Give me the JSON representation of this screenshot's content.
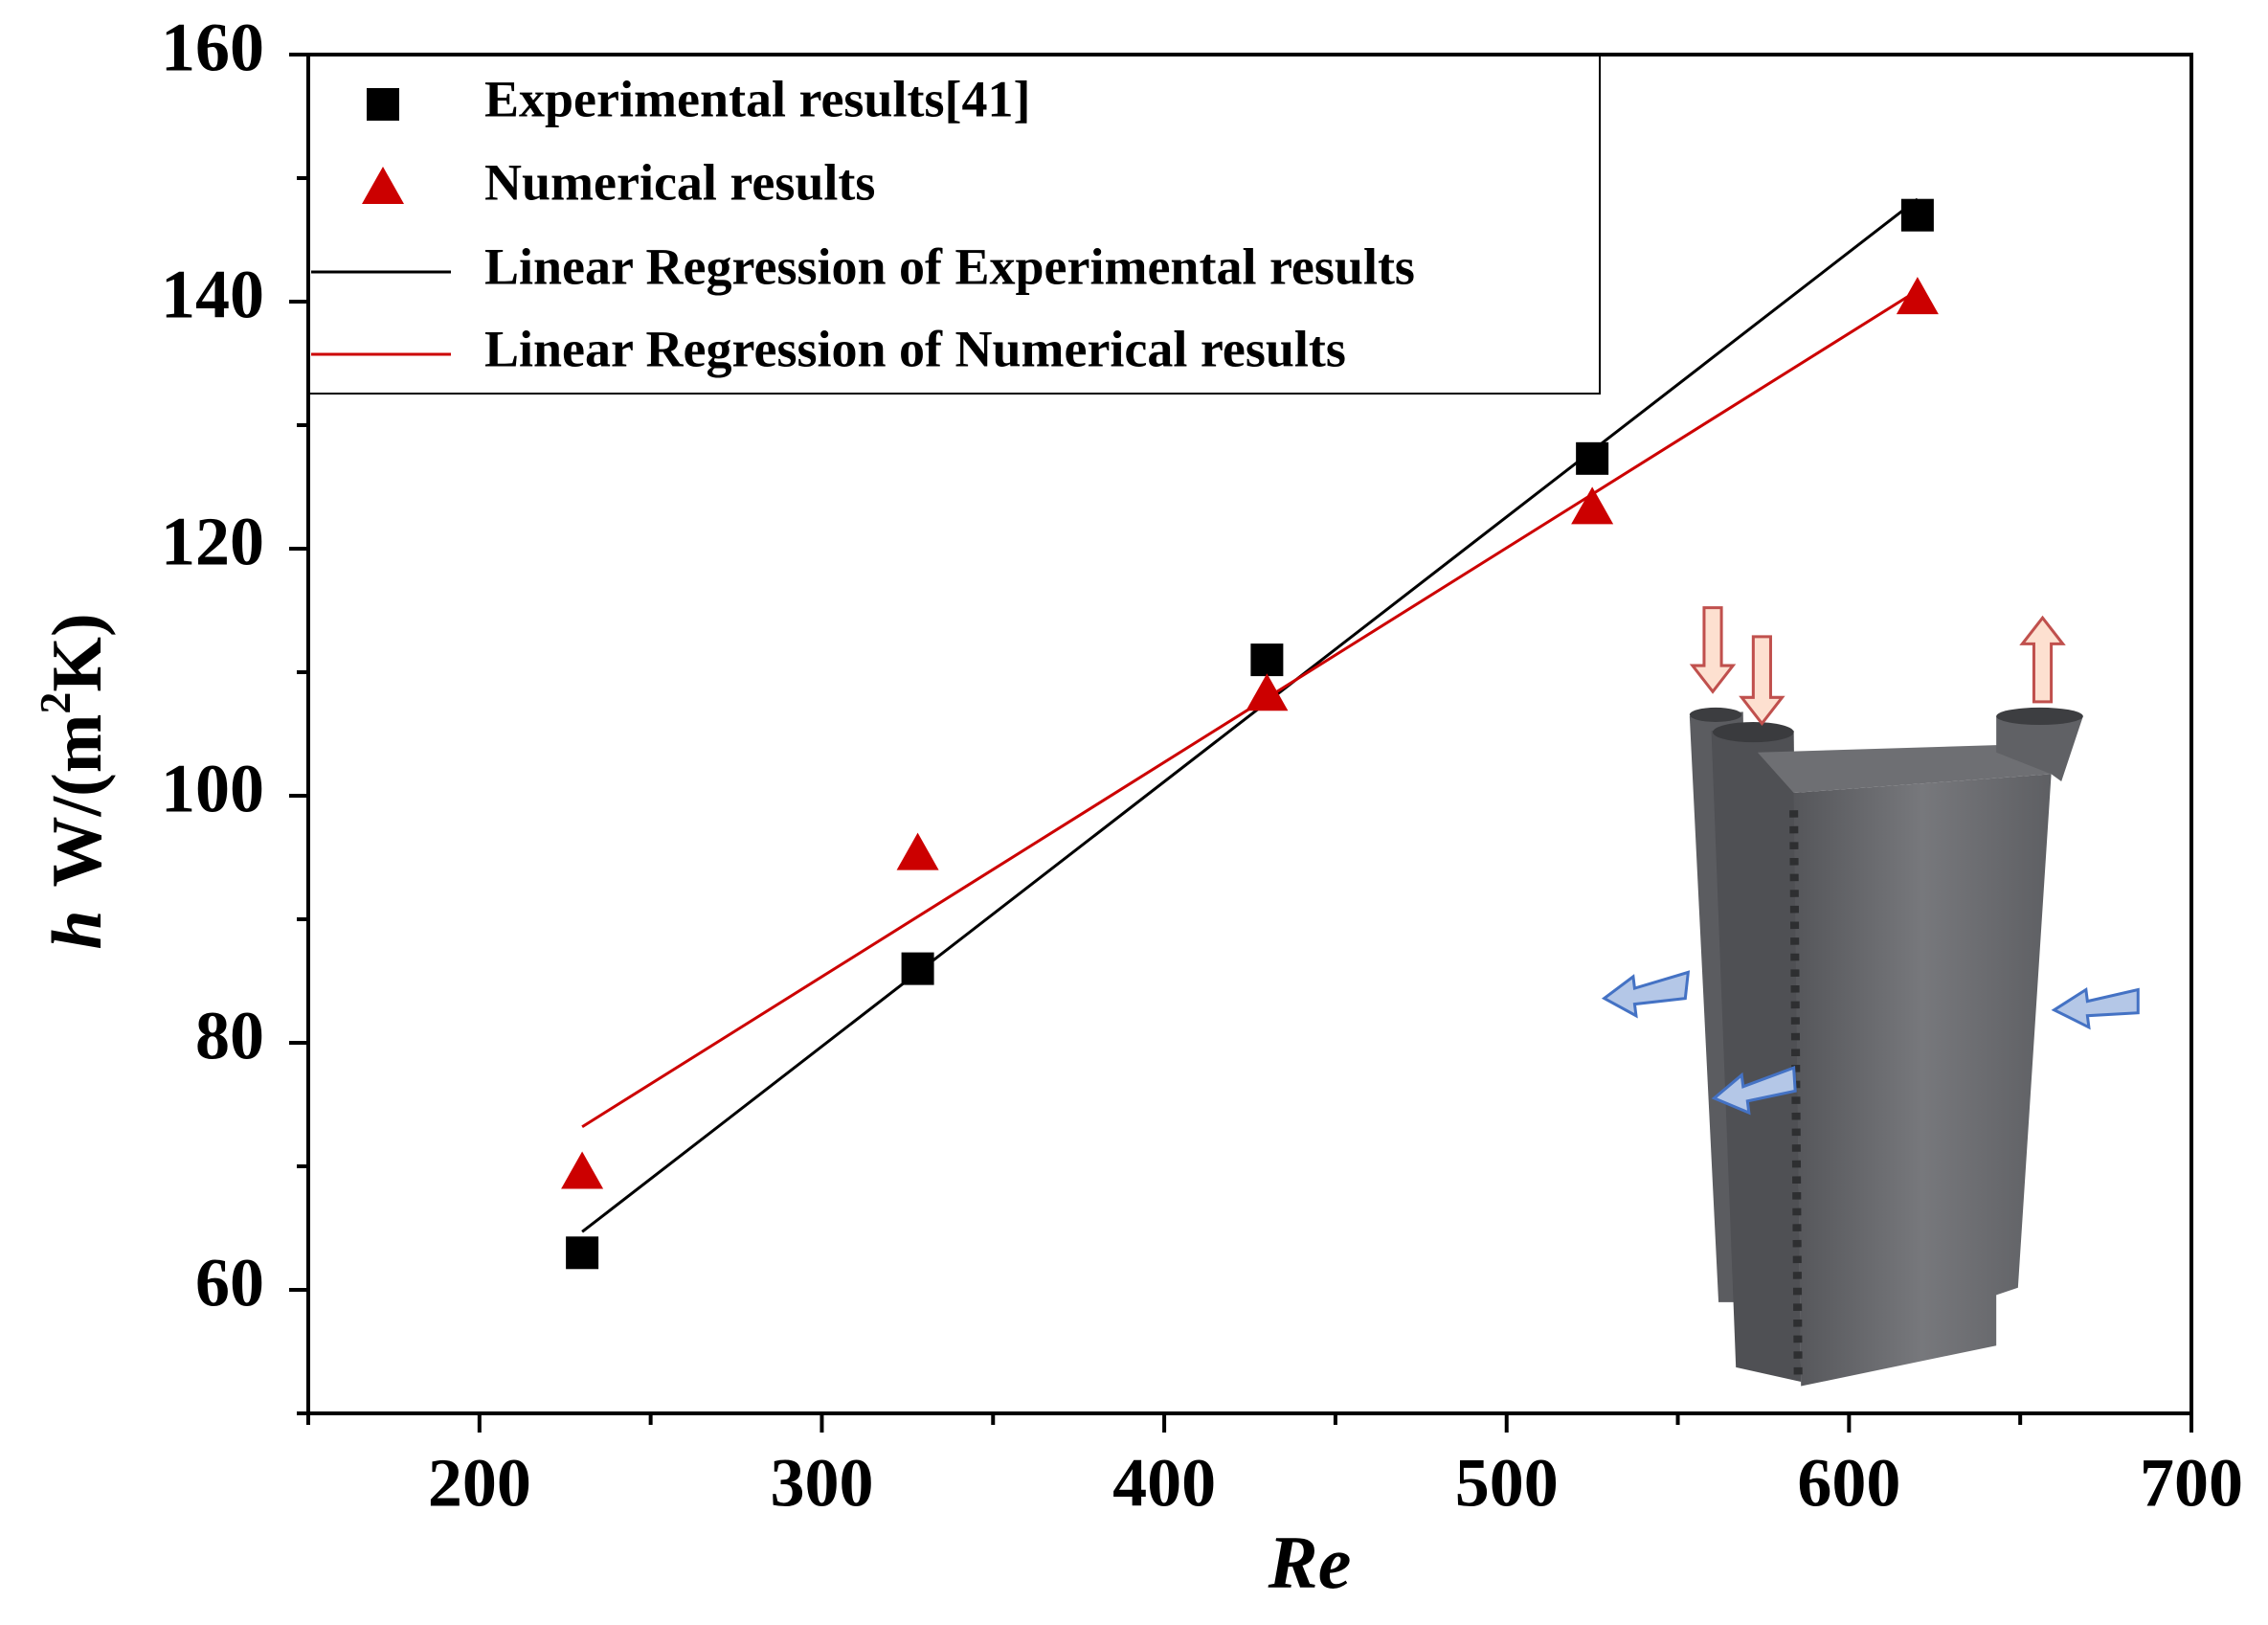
{
  "chart_data": {
    "type": "scatter",
    "x_label": "Re",
    "y_label_parts": [
      "h",
      "W/(m",
      "2",
      "K)"
    ],
    "xlim": [
      150,
      700
    ],
    "xticks": [
      200,
      300,
      400,
      500,
      600,
      700
    ],
    "xminorticks": [
      150,
      250,
      350,
      450,
      550,
      650
    ],
    "ylim": [
      50,
      160
    ],
    "yticks": [
      60,
      80,
      100,
      120,
      140,
      160
    ],
    "yminorticks": [
      50,
      70,
      90,
      110,
      130,
      150
    ],
    "legend": "top-left",
    "series": [
      {
        "name": "Experimental results[41]",
        "kind": "square",
        "color": "#000000",
        "x": [
          230,
          328,
          430,
          525,
          620
        ],
        "values": [
          63,
          86,
          111,
          127.3,
          147
        ]
      },
      {
        "name": "Numerical results",
        "kind": "triangle",
        "color": "#cc0000",
        "x": [
          230,
          328,
          430,
          525,
          620
        ],
        "values": [
          69.5,
          95.3,
          108.2,
          123.3,
          140.3
        ]
      },
      {
        "name": "Linear Regression of Experimental results",
        "kind": "line",
        "color": "#000000",
        "x": [
          230,
          620
        ],
        "values": [
          64.7,
          148.3
        ]
      },
      {
        "name": "Linear Regression of Numerical results",
        "kind": "line",
        "color": "#cc0000",
        "x": [
          230,
          620
        ],
        "values": [
          73.2,
          140.9
        ]
      }
    ]
  }
}
